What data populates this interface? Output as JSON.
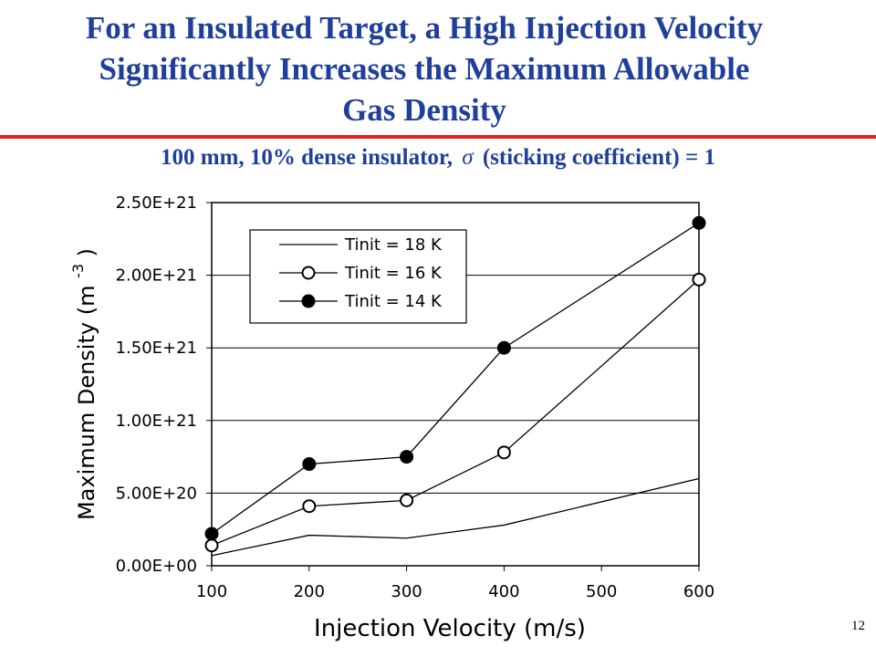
{
  "slide": {
    "title_lines": [
      "For an Insulated Target, a High Injection Velocity",
      "Significantly Increases the Maximum Allowable",
      "Gas Density"
    ],
    "subtitle_before": "100 mm, 10% dense insulator,",
    "subtitle_symbol": "σ",
    "subtitle_after": "(sticking coefficient) = 1",
    "page_number": "12"
  },
  "chart_data": {
    "type": "line",
    "xlabel": "Injection Velocity (m/s)",
    "ylabel_text": "Maximum Density (m",
    "ylabel_exponent": "-3",
    "ylabel_close": ")",
    "x_ticks": [
      "100",
      "200",
      "300",
      "400",
      "500",
      "600"
    ],
    "y_ticks": [
      "0.00E+00",
      "5.00E+20",
      "1.00E+21",
      "1.50E+21",
      "2.00E+21",
      "2.50E+21"
    ],
    "xlim": [
      100,
      600
    ],
    "ylim": [
      0,
      2.5e+21
    ],
    "grid": "horizontal",
    "legend_position": "top-left",
    "series": [
      {
        "name": "Tinit = 18 K",
        "marker": "none",
        "x": [
          100,
          200,
          300,
          400,
          600
        ],
        "y": [
          7e+19,
          2.1e+20,
          1.9e+20,
          2.8e+20,
          6e+20
        ]
      },
      {
        "name": "Tinit = 16 K",
        "marker": "open-circle",
        "x": [
          100,
          200,
          300,
          400,
          600
        ],
        "y": [
          1.4e+20,
          4.1e+20,
          4.5e+20,
          7.8e+20,
          1.97e+21
        ]
      },
      {
        "name": "Tinit = 14 K",
        "marker": "filled-circle",
        "x": [
          100,
          200,
          300,
          400,
          600
        ],
        "y": [
          2.2e+20,
          7e+20,
          7.5e+20,
          1.5e+21,
          2.36e+21
        ]
      }
    ],
    "colors": {
      "line": "#000000",
      "grid": "#000000",
      "open_marker_fill": "#ffffff",
      "filled_marker_fill": "#000000"
    }
  }
}
